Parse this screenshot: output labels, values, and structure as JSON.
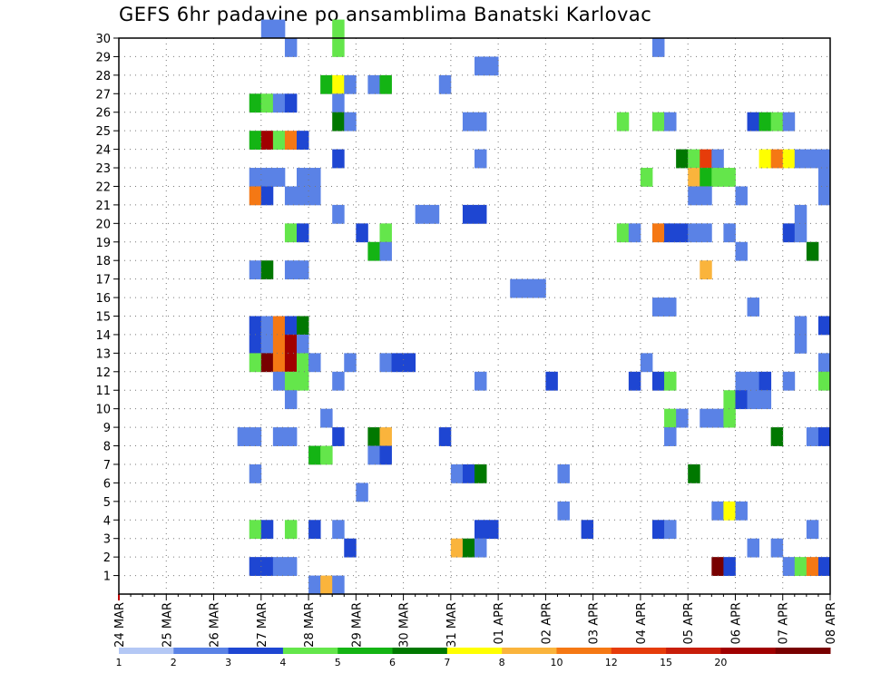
{
  "chart_data": {
    "type": "heatmap",
    "title": "GEFS 6hr padavine po ansamblima Banatski Karlovac",
    "xlabel": "",
    "ylabel": "",
    "y_ticks": [
      "1",
      "2",
      "3",
      "4",
      "5",
      "6",
      "7",
      "8",
      "9",
      "10",
      "11",
      "12",
      "13",
      "14",
      "15",
      "16",
      "17",
      "18",
      "19",
      "20",
      "21",
      "22",
      "23",
      "24",
      "25",
      "26",
      "27",
      "28",
      "29",
      "30"
    ],
    "x_ticks": [
      "24 MAR",
      "25 MAR",
      "26 MAR",
      "27 MAR",
      "28 MAR",
      "29 MAR",
      "30 MAR",
      "31 MAR",
      "01 APR",
      "02 APR",
      "03 APR",
      "04 APR",
      "05 APR",
      "06 APR",
      "07 APR",
      "08 APR"
    ],
    "x_unit": "6-hour step from 24 MAR 00Z (x axis 0 to 60)",
    "y_unit": "ensemble member (0 to 30)",
    "levels": [
      {
        "label": "1",
        "color": "#b4c8f5"
      },
      {
        "label": "2",
        "color": "#5a82e6"
      },
      {
        "label": "3",
        "color": "#1e46d2"
      },
      {
        "label": "4",
        "color": "#64e64b"
      },
      {
        "label": "5",
        "color": "#14b414"
      },
      {
        "label": "6",
        "color": "#007800"
      },
      {
        "label": "7",
        "color": "#ffff00"
      },
      {
        "label": "8",
        "color": "#fab43c"
      },
      {
        "label": "10",
        "color": "#f57814"
      },
      {
        "label": "12",
        "color": "#e63c0a"
      },
      {
        "label": "15",
        "color": "#c81e0a"
      },
      {
        "label": "20",
        "color": "#a00000"
      },
      {
        "label": "",
        "color": "#780000"
      }
    ],
    "cells": [
      [
        12,
        30,
        1
      ],
      [
        13,
        30,
        1
      ],
      [
        18,
        30,
        3
      ],
      [
        14,
        29,
        1
      ],
      [
        18,
        29,
        3
      ],
      [
        45,
        29,
        1
      ],
      [
        30,
        28,
        1
      ],
      [
        31,
        28,
        1
      ],
      [
        17,
        27,
        4
      ],
      [
        18,
        27,
        6
      ],
      [
        19,
        27,
        1
      ],
      [
        21,
        27,
        1
      ],
      [
        22,
        27,
        4
      ],
      [
        27,
        27,
        1
      ],
      [
        11,
        26,
        4
      ],
      [
        12,
        26,
        3
      ],
      [
        13,
        26,
        1
      ],
      [
        14,
        26,
        2
      ],
      [
        18,
        26,
        1
      ],
      [
        18,
        25,
        5
      ],
      [
        19,
        25,
        1
      ],
      [
        29,
        25,
        1
      ],
      [
        30,
        25,
        1
      ],
      [
        42,
        25,
        3
      ],
      [
        45,
        25,
        3
      ],
      [
        46,
        25,
        1
      ],
      [
        53,
        25,
        2
      ],
      [
        54,
        25,
        4
      ],
      [
        55,
        25,
        3
      ],
      [
        56,
        25,
        1
      ],
      [
        11,
        24,
        4
      ],
      [
        12,
        24,
        11
      ],
      [
        13,
        24,
        3
      ],
      [
        14,
        24,
        8
      ],
      [
        15,
        24,
        2
      ],
      [
        18,
        23,
        2
      ],
      [
        30,
        23,
        1
      ],
      [
        47,
        23,
        5
      ],
      [
        48,
        23,
        3
      ],
      [
        49,
        23,
        9
      ],
      [
        50,
        23,
        1
      ],
      [
        54,
        23,
        6
      ],
      [
        55,
        23,
        8
      ],
      [
        56,
        23,
        6
      ],
      [
        57,
        23,
        1
      ],
      [
        58,
        23,
        1
      ],
      [
        59,
        23,
        1
      ],
      [
        11,
        22,
        1
      ],
      [
        12,
        22,
        1
      ],
      [
        13,
        22,
        1
      ],
      [
        15,
        22,
        1
      ],
      [
        16,
        22,
        1
      ],
      [
        44,
        22,
        3
      ],
      [
        48,
        22,
        7
      ],
      [
        49,
        22,
        4
      ],
      [
        50,
        22,
        3
      ],
      [
        51,
        22,
        3
      ],
      [
        59,
        22,
        1
      ],
      [
        11,
        21,
        8
      ],
      [
        12,
        21,
        2
      ],
      [
        14,
        21,
        1
      ],
      [
        15,
        21,
        1
      ],
      [
        16,
        21,
        1
      ],
      [
        48,
        21,
        1
      ],
      [
        49,
        21,
        1
      ],
      [
        52,
        21,
        1
      ],
      [
        59,
        21,
        1
      ],
      [
        18,
        20,
        1
      ],
      [
        25,
        20,
        1
      ],
      [
        26,
        20,
        1
      ],
      [
        29,
        20,
        2
      ],
      [
        30,
        20,
        2
      ],
      [
        57,
        20,
        1
      ],
      [
        14,
        19,
        3
      ],
      [
        15,
        19,
        2
      ],
      [
        20,
        19,
        2
      ],
      [
        22,
        19,
        3
      ],
      [
        42,
        19,
        3
      ],
      [
        43,
        19,
        1
      ],
      [
        45,
        19,
        8
      ],
      [
        46,
        19,
        2
      ],
      [
        47,
        19,
        2
      ],
      [
        48,
        19,
        1
      ],
      [
        49,
        19,
        1
      ],
      [
        51,
        19,
        1
      ],
      [
        56,
        19,
        2
      ],
      [
        57,
        19,
        1
      ],
      [
        21,
        18,
        4
      ],
      [
        22,
        18,
        1
      ],
      [
        52,
        18,
        1
      ],
      [
        58,
        18,
        5
      ],
      [
        11,
        17,
        1
      ],
      [
        12,
        17,
        5
      ],
      [
        14,
        17,
        1
      ],
      [
        15,
        17,
        1
      ],
      [
        49,
        17,
        7
      ],
      [
        33,
        16,
        1
      ],
      [
        34,
        16,
        1
      ],
      [
        35,
        16,
        1
      ],
      [
        45,
        15,
        1
      ],
      [
        46,
        15,
        1
      ],
      [
        53,
        15,
        1
      ],
      [
        11,
        14,
        2
      ],
      [
        12,
        14,
        1
      ],
      [
        13,
        14,
        8
      ],
      [
        14,
        14,
        2
      ],
      [
        15,
        14,
        5
      ],
      [
        57,
        14,
        1
      ],
      [
        59,
        14,
        2
      ],
      [
        11,
        13,
        2
      ],
      [
        12,
        13,
        1
      ],
      [
        13,
        13,
        8
      ],
      [
        14,
        13,
        11
      ],
      [
        15,
        13,
        1
      ],
      [
        57,
        13,
        1
      ],
      [
        11,
        12,
        3
      ],
      [
        12,
        12,
        12
      ],
      [
        13,
        12,
        8
      ],
      [
        14,
        12,
        11
      ],
      [
        15,
        12,
        3
      ],
      [
        16,
        12,
        1
      ],
      [
        19,
        12,
        1
      ],
      [
        22,
        12,
        1
      ],
      [
        23,
        12,
        2
      ],
      [
        24,
        12,
        2
      ],
      [
        44,
        12,
        1
      ],
      [
        59,
        12,
        1
      ],
      [
        13,
        11,
        1
      ],
      [
        14,
        11,
        3
      ],
      [
        15,
        11,
        3
      ],
      [
        18,
        11,
        1
      ],
      [
        30,
        11,
        1
      ],
      [
        36,
        11,
        2
      ],
      [
        43,
        11,
        2
      ],
      [
        45,
        11,
        2
      ],
      [
        46,
        11,
        3
      ],
      [
        52,
        11,
        1
      ],
      [
        53,
        11,
        1
      ],
      [
        54,
        11,
        2
      ],
      [
        56,
        11,
        1
      ],
      [
        59,
        11,
        3
      ],
      [
        14,
        10,
        1
      ],
      [
        51,
        10,
        3
      ],
      [
        52,
        10,
        2
      ],
      [
        53,
        10,
        1
      ],
      [
        54,
        10,
        1
      ],
      [
        17,
        9,
        1
      ],
      [
        46,
        9,
        3
      ],
      [
        47,
        9,
        1
      ],
      [
        49,
        9,
        1
      ],
      [
        50,
        9,
        1
      ],
      [
        51,
        9,
        3
      ],
      [
        10,
        8,
        1
      ],
      [
        11,
        8,
        1
      ],
      [
        13,
        8,
        1
      ],
      [
        14,
        8,
        1
      ],
      [
        18,
        8,
        2
      ],
      [
        21,
        8,
        5
      ],
      [
        22,
        8,
        7
      ],
      [
        27,
        8,
        2
      ],
      [
        46,
        8,
        1
      ],
      [
        55,
        8,
        5
      ],
      [
        58,
        8,
        1
      ],
      [
        59,
        8,
        2
      ],
      [
        16,
        7,
        4
      ],
      [
        17,
        7,
        3
      ],
      [
        21,
        7,
        1
      ],
      [
        22,
        7,
        2
      ],
      [
        11,
        6,
        1
      ],
      [
        28,
        6,
        1
      ],
      [
        29,
        6,
        2
      ],
      [
        30,
        6,
        5
      ],
      [
        37,
        6,
        1
      ],
      [
        48,
        6,
        5
      ],
      [
        20,
        5,
        1
      ],
      [
        37,
        4,
        1
      ],
      [
        50,
        4,
        1
      ],
      [
        51,
        4,
        6
      ],
      [
        52,
        4,
        1
      ],
      [
        11,
        3,
        3
      ],
      [
        12,
        3,
        2
      ],
      [
        14,
        3,
        3
      ],
      [
        16,
        3,
        2
      ],
      [
        18,
        3,
        1
      ],
      [
        30,
        3,
        2
      ],
      [
        31,
        3,
        2
      ],
      [
        39,
        3,
        2
      ],
      [
        45,
        3,
        2
      ],
      [
        46,
        3,
        1
      ],
      [
        58,
        3,
        1
      ],
      [
        19,
        2,
        2
      ],
      [
        28,
        2,
        7
      ],
      [
        29,
        2,
        5
      ],
      [
        30,
        2,
        1
      ],
      [
        53,
        2,
        1
      ],
      [
        55,
        2,
        1
      ],
      [
        11,
        1,
        2
      ],
      [
        12,
        1,
        2
      ],
      [
        13,
        1,
        1
      ],
      [
        14,
        1,
        1
      ],
      [
        50,
        1,
        12
      ],
      [
        51,
        1,
        2
      ],
      [
        56,
        1,
        1
      ],
      [
        57,
        1,
        3
      ],
      [
        58,
        1,
        8
      ],
      [
        59,
        1,
        2
      ],
      [
        16,
        0,
        1
      ],
      [
        17,
        0,
        7
      ],
      [
        18,
        0,
        1
      ]
    ]
  }
}
